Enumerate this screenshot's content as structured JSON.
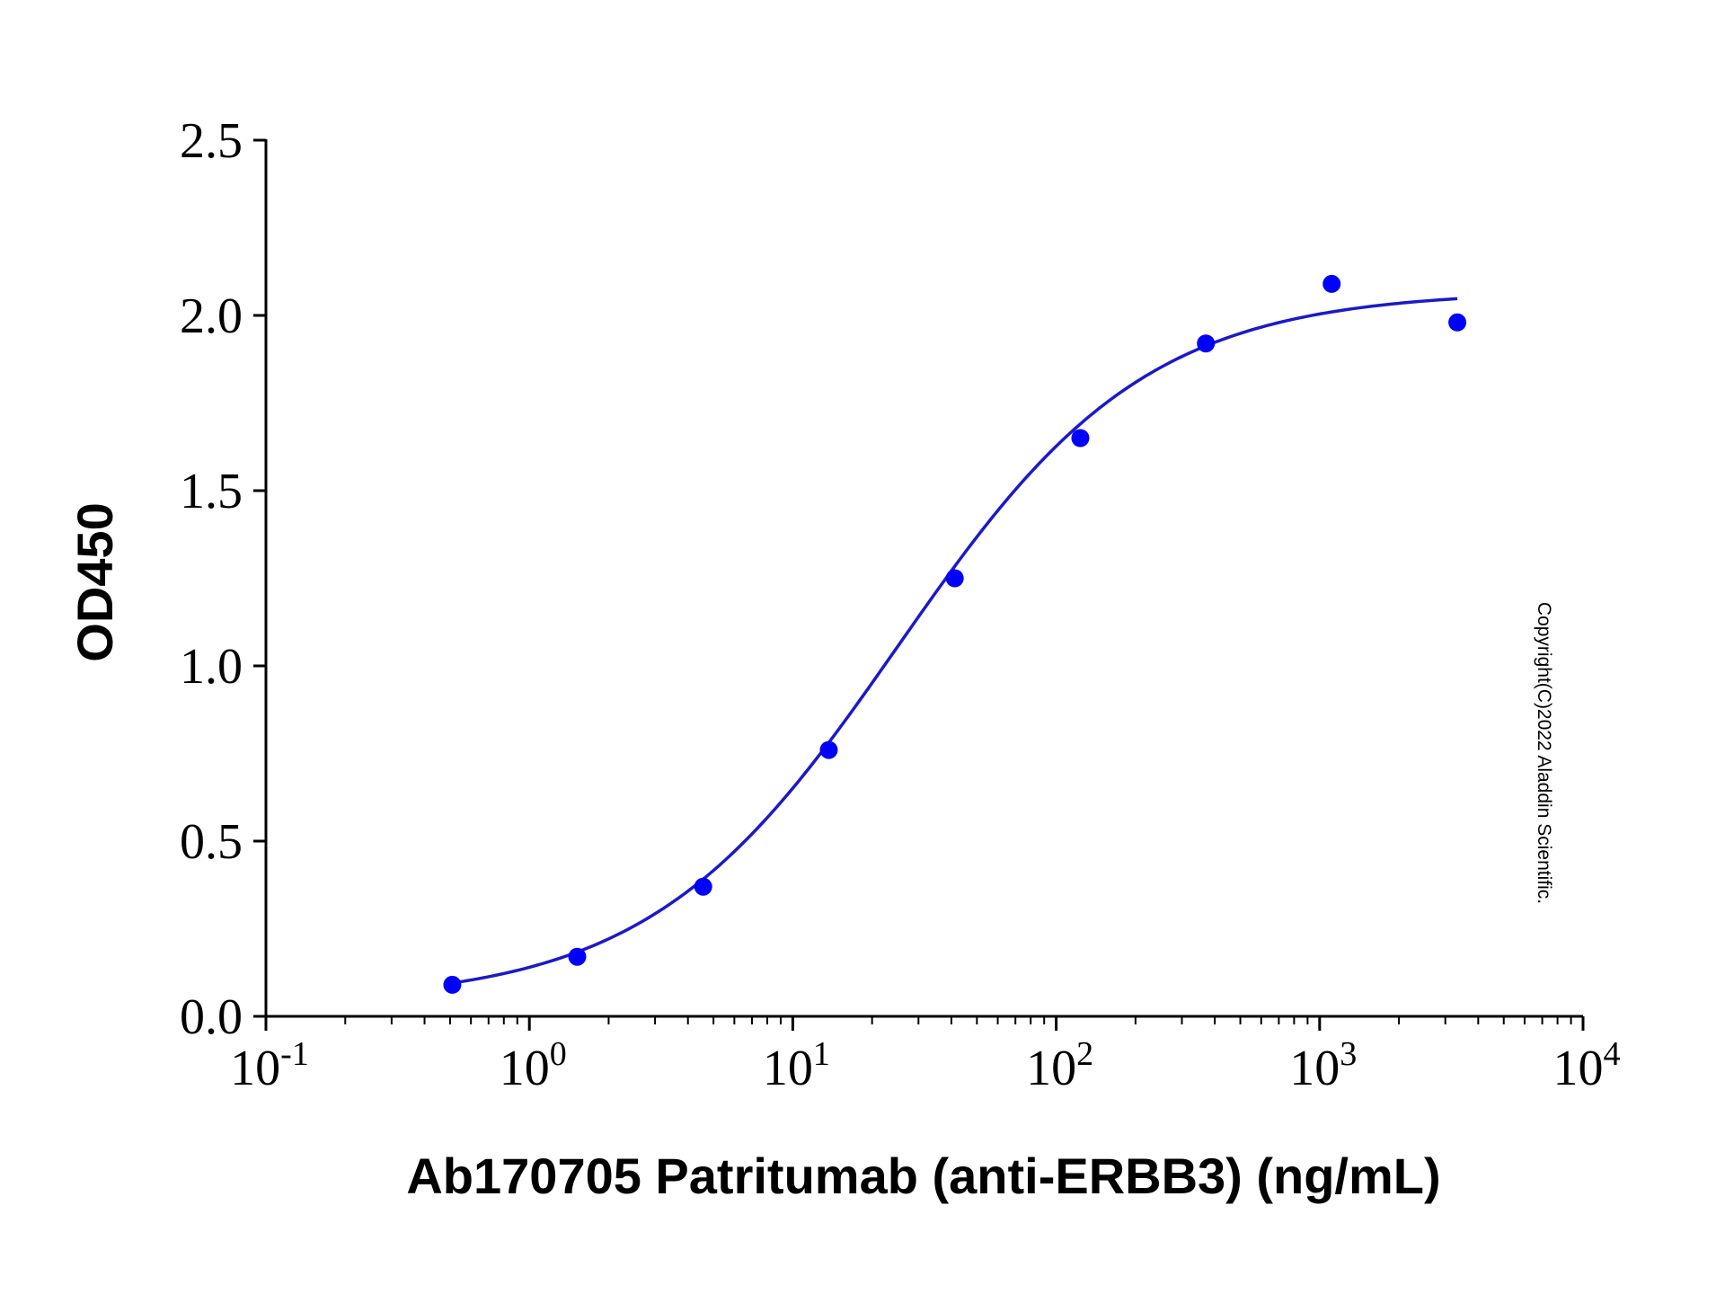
{
  "chart_data": {
    "type": "scatter",
    "title": "",
    "xlabel": "Ab170705 Patritumab (anti-ERBB3) (ng/mL)",
    "ylabel": "OD450",
    "x_scale": "log",
    "xlim": [
      0.1,
      10000
    ],
    "ylim": [
      0,
      2.5
    ],
    "x_ticks": [
      {
        "base": "10",
        "exp": "-1"
      },
      {
        "base": "10",
        "exp": "0"
      },
      {
        "base": "10",
        "exp": "1"
      },
      {
        "base": "10",
        "exp": "2"
      },
      {
        "base": "10",
        "exp": "3"
      },
      {
        "base": "10",
        "exp": "4"
      }
    ],
    "y_ticks": [
      "0.0",
      "0.5",
      "1.0",
      "1.5",
      "2.0",
      "2.5"
    ],
    "grid": false,
    "legend": "none",
    "series": [
      {
        "points": [
          [
            0.51,
            0.09
          ],
          [
            1.52,
            0.17
          ],
          [
            4.57,
            0.37
          ],
          [
            13.7,
            0.76
          ],
          [
            41.2,
            1.25
          ],
          [
            123.5,
            1.65
          ],
          [
            370,
            1.92
          ],
          [
            1111,
            2.09
          ],
          [
            3333,
            1.98
          ]
        ],
        "fit": "4PL",
        "fit_params": {
          "bottom": 0.04,
          "top": 2.07,
          "ec50": 25,
          "hill": 0.92
        },
        "fit_range": [
          0.51,
          3333
        ],
        "color": "#0000FF",
        "line_color": "#1A1AC8"
      }
    ],
    "annotations": [
      "Copyright(C)2022 Aladdin Scientific."
    ]
  }
}
